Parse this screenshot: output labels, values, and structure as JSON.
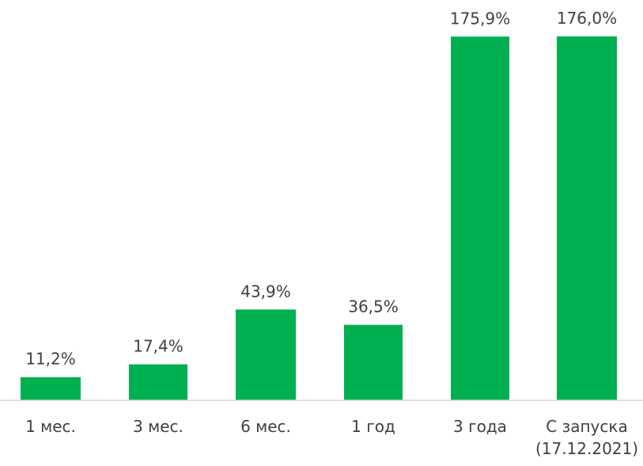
{
  "chart_data": {
    "type": "bar",
    "categories": [
      [
        "1 мес."
      ],
      [
        "3 мес."
      ],
      [
        "6 мес."
      ],
      [
        "1 год"
      ],
      [
        "3 года"
      ],
      [
        "С запуска",
        "(17.12.2021)"
      ]
    ],
    "values": [
      11.2,
      17.4,
      43.9,
      36.5,
      175.9,
      176.0
    ],
    "data_labels": [
      "11,2%",
      "17,4%",
      "43,9%",
      "36,5%",
      "175,9%",
      "176,0%"
    ],
    "title": "",
    "xlabel": "",
    "ylabel": "",
    "ylim": [
      0,
      176
    ],
    "grid": false,
    "legend": "none",
    "bar_color": "#00b050",
    "axis_color": "#d9d9d9",
    "text_color": "#404040"
  }
}
